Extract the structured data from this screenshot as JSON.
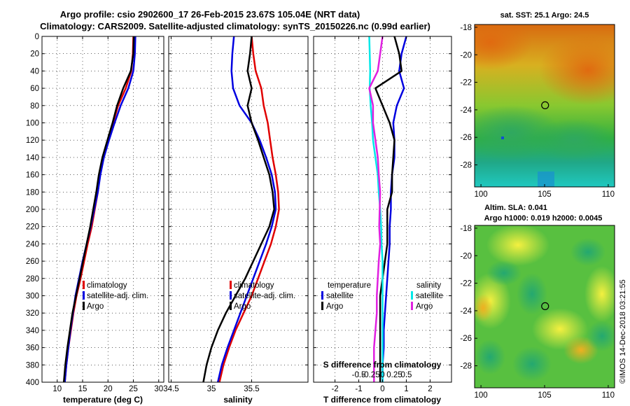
{
  "title_line1": "Argo profile: csio 2902600_17 26-Feb-2015 23.67S 105.04E (NRT data)",
  "title_line2": "Climatology: CARS2009. Satellite-adjusted climatology: synTS_20150226.nc (0.99d earlier)",
  "watermark": "©IMOS 14-Dec-2018 03:21:55",
  "colors": {
    "climatology": "#e00000",
    "satellite": "#0000e0",
    "argo": "#000000",
    "sat_salinity": "#00e8e8",
    "argo_salinity": "#e020e0"
  },
  "chart_data": [
    {
      "type": "line",
      "id": "temperature",
      "xlabel": "temperature (deg C)",
      "ylabel": "",
      "xlim": [
        7,
        31
      ],
      "ylim": [
        400,
        0
      ],
      "xticks": [
        10,
        15,
        20,
        25,
        30
      ],
      "xtick_labels": [
        "10",
        "15",
        "20",
        "25",
        "30"
      ],
      "yticks": [
        0,
        20,
        40,
        60,
        80,
        100,
        120,
        140,
        160,
        180,
        200,
        220,
        240,
        260,
        280,
        300,
        320,
        340,
        360,
        380,
        400
      ],
      "ytick_labels": [
        "0",
        "20",
        "40",
        "60",
        "80",
        "100",
        "120",
        "140",
        "160",
        "180",
        "200",
        "220",
        "240",
        "260",
        "280",
        "300",
        "320",
        "340",
        "360",
        "380",
        "400"
      ],
      "grid": true,
      "legend": [
        "climatology",
        "satellite-adj. clim.",
        "Argo"
      ],
      "series": [
        {
          "name": "climatology",
          "color": "#e00000",
          "x": [
            25.0,
            24.9,
            24.6,
            23.5,
            22.0,
            21.0,
            20.0,
            19.0,
            18.4,
            18.0,
            17.4,
            16.8,
            16.0,
            15.3,
            14.6,
            13.8,
            13.2,
            12.7,
            12.2,
            11.8,
            11.5
          ],
          "y": [
            0,
            20,
            40,
            60,
            80,
            100,
            120,
            140,
            160,
            180,
            200,
            220,
            240,
            260,
            280,
            300,
            320,
            340,
            360,
            380,
            400
          ]
        },
        {
          "name": "satellite-adj. clim.",
          "color": "#0000e0",
          "x": [
            25.4,
            25.3,
            25.0,
            24.0,
            22.5,
            21.3,
            20.2,
            19.2,
            18.5,
            18.0,
            17.3,
            16.6,
            15.8,
            15.0,
            14.3,
            13.6,
            13.1,
            12.6,
            12.2,
            11.8,
            11.5
          ],
          "y": [
            0,
            20,
            40,
            60,
            80,
            100,
            120,
            140,
            160,
            180,
            200,
            220,
            240,
            260,
            280,
            300,
            320,
            340,
            360,
            380,
            400
          ]
        },
        {
          "name": "Argo",
          "color": "#000000",
          "x": [
            25.1,
            25.0,
            24.5,
            23.0,
            21.8,
            20.9,
            19.9,
            18.9,
            18.2,
            17.7,
            17.1,
            16.5,
            15.8,
            15.1,
            14.4,
            13.7,
            13.0,
            12.5,
            12.0,
            11.6,
            11.3
          ],
          "y": [
            0,
            20,
            40,
            60,
            80,
            100,
            120,
            140,
            160,
            180,
            200,
            220,
            240,
            260,
            280,
            300,
            320,
            340,
            360,
            380,
            400
          ]
        }
      ]
    },
    {
      "type": "line",
      "id": "salinity",
      "xlabel": "salinity",
      "ylabel": "",
      "xlim": [
        34.47,
        36.2
      ],
      "ylim": [
        400,
        0
      ],
      "xticks": [
        34.5,
        35,
        35.5
      ],
      "xtick_labels": [
        "34.5",
        "35",
        "35.5"
      ],
      "grid": true,
      "legend": [
        "climatology",
        "satellite-adj. clim.",
        "Argo"
      ],
      "series": [
        {
          "name": "climatology",
          "color": "#e00000",
          "x": [
            35.5,
            35.52,
            35.55,
            35.62,
            35.65,
            35.7,
            35.73,
            35.76,
            35.8,
            35.83,
            35.84,
            35.8,
            35.74,
            35.66,
            35.58,
            35.5,
            35.4,
            35.3,
            35.22,
            35.15,
            35.1
          ],
          "y": [
            0,
            20,
            40,
            60,
            80,
            100,
            120,
            140,
            160,
            180,
            200,
            220,
            240,
            260,
            280,
            300,
            320,
            340,
            360,
            380,
            400
          ]
        },
        {
          "name": "satellite-adj. clim.",
          "color": "#0000e0",
          "x": [
            35.28,
            35.26,
            35.25,
            35.27,
            35.35,
            35.5,
            35.6,
            35.68,
            35.75,
            35.79,
            35.8,
            35.75,
            35.68,
            35.6,
            35.52,
            35.44,
            35.36,
            35.28,
            35.2,
            35.13,
            35.08
          ],
          "y": [
            0,
            20,
            40,
            60,
            80,
            100,
            120,
            140,
            160,
            180,
            200,
            220,
            240,
            260,
            280,
            300,
            320,
            340,
            360,
            380,
            400
          ]
        },
        {
          "name": "Argo",
          "color": "#000000",
          "x": [
            35.5,
            35.48,
            35.45,
            35.5,
            35.45,
            35.5,
            35.58,
            35.65,
            35.72,
            35.76,
            35.78,
            35.72,
            35.62,
            35.52,
            35.42,
            35.3,
            35.18,
            35.08,
            35.0,
            34.94,
            34.9
          ],
          "y": [
            0,
            20,
            40,
            60,
            80,
            100,
            120,
            140,
            160,
            180,
            200,
            220,
            240,
            260,
            280,
            300,
            320,
            340,
            360,
            380,
            400
          ]
        }
      ]
    },
    {
      "type": "line",
      "id": "difference",
      "xlabel": "T difference from climatology",
      "xlabel_top": "S difference from climatology",
      "xlim": [
        -2.9,
        2.9
      ],
      "ylim": [
        400,
        0
      ],
      "xticks": [
        -2,
        -1,
        0,
        1,
        2
      ],
      "xtick_labels": [
        "-2",
        "-1",
        "0",
        "1",
        "2"
      ],
      "xticks_top": [
        -0.5,
        -0.25,
        0,
        0.25,
        0.5
      ],
      "xtick_labels_top": [
        "-0.5",
        "-0.25",
        "0",
        "0.25",
        "0.5"
      ],
      "grid": true,
      "legend_temperature_title": "temperature",
      "legend_salinity_title": "salinity",
      "legend_temperature": [
        "satellite",
        "Argo"
      ],
      "legend_salinity": [
        "satellite",
        "Argo"
      ],
      "series": [
        {
          "name": "temperature satellite",
          "color": "#0000e0",
          "x": [
            1.0,
            0.8,
            0.7,
            0.9,
            0.6,
            0.45,
            0.5,
            0.5,
            0.4,
            0.35,
            0.35,
            0.3,
            0.3,
            0.25,
            0.2,
            0.15,
            0.1,
            0.05,
            0.05,
            0.0,
            0.0
          ],
          "y": [
            0,
            20,
            40,
            60,
            80,
            100,
            120,
            140,
            160,
            180,
            200,
            220,
            240,
            260,
            280,
            300,
            320,
            340,
            360,
            380,
            400
          ]
        },
        {
          "name": "temperature Argo",
          "color": "#000000",
          "x": [
            0.5,
            0.7,
            0.8,
            -0.3,
            0.0,
            0.3,
            0.5,
            0.45,
            0.4,
            0.4,
            0.2,
            0.2,
            0.2,
            0.1,
            0.0,
            -0.1,
            -0.1,
            -0.1,
            -0.1,
            -0.1,
            -0.1
          ],
          "y": [
            0,
            20,
            40,
            60,
            80,
            100,
            120,
            140,
            160,
            180,
            200,
            220,
            240,
            260,
            280,
            300,
            320,
            340,
            360,
            380,
            400
          ]
        },
        {
          "name": "salinity satellite",
          "color": "#00e8e8",
          "x": [
            -0.28,
            -0.27,
            -0.26,
            -0.27,
            -0.25,
            -0.22,
            -0.2,
            -0.15,
            -0.1,
            -0.08,
            -0.05,
            -0.03,
            -0.02,
            0.0,
            0.0,
            0.0,
            0.0,
            0.0,
            0.0,
            0.0,
            0.0
          ],
          "y": [
            0,
            20,
            40,
            60,
            80,
            100,
            120,
            140,
            160,
            180,
            200,
            220,
            240,
            260,
            280,
            300,
            320,
            340,
            360,
            380,
            400
          ]
        },
        {
          "name": "salinity Argo",
          "color": "#e020e0",
          "x": [
            0.0,
            -0.05,
            -0.1,
            -0.28,
            -0.2,
            -0.2,
            -0.15,
            -0.1,
            -0.08,
            -0.05,
            -0.06,
            -0.07,
            -0.05,
            -0.08,
            -0.1,
            -0.12,
            -0.12,
            -0.15,
            -0.18,
            -0.18,
            -0.18
          ],
          "y": [
            0,
            20,
            40,
            60,
            80,
            100,
            120,
            140,
            160,
            180,
            200,
            220,
            240,
            260,
            280,
            300,
            320,
            340,
            360,
            380,
            400
          ]
        }
      ]
    },
    {
      "type": "heatmap",
      "id": "sst_map",
      "title": "sat. SST: 25.1 Argo: 24.5",
      "xlim": [
        99.5,
        110.5
      ],
      "ylim": [
        -29.6,
        -17.8
      ],
      "xticks": [
        100,
        105,
        110
      ],
      "xtick_labels": [
        "100",
        "105",
        "110"
      ],
      "yticks": [
        -18,
        -20,
        -22,
        -24,
        -26,
        -28
      ],
      "ytick_labels": [
        "-18",
        "-20",
        "-22",
        "-24",
        "-26",
        "-28"
      ],
      "marker": {
        "lon": 105.04,
        "lat": -23.67
      }
    },
    {
      "type": "heatmap",
      "id": "sla_map",
      "title": "Altim. SLA: 0.041",
      "subtitle": "Argo h1000: 0.019 h2000: 0.0045",
      "xlim": [
        99.5,
        110.5
      ],
      "ylim": [
        -29.6,
        -17.8
      ],
      "xticks": [
        100,
        105,
        110
      ],
      "xtick_labels": [
        "100",
        "105",
        "110"
      ],
      "yticks": [
        -18,
        -20,
        -22,
        -24,
        -26,
        -28
      ],
      "ytick_labels": [
        "-18",
        "-20",
        "-22",
        "-24",
        "-26",
        "-28"
      ],
      "marker": {
        "lon": 105.04,
        "lat": -23.67
      }
    }
  ]
}
